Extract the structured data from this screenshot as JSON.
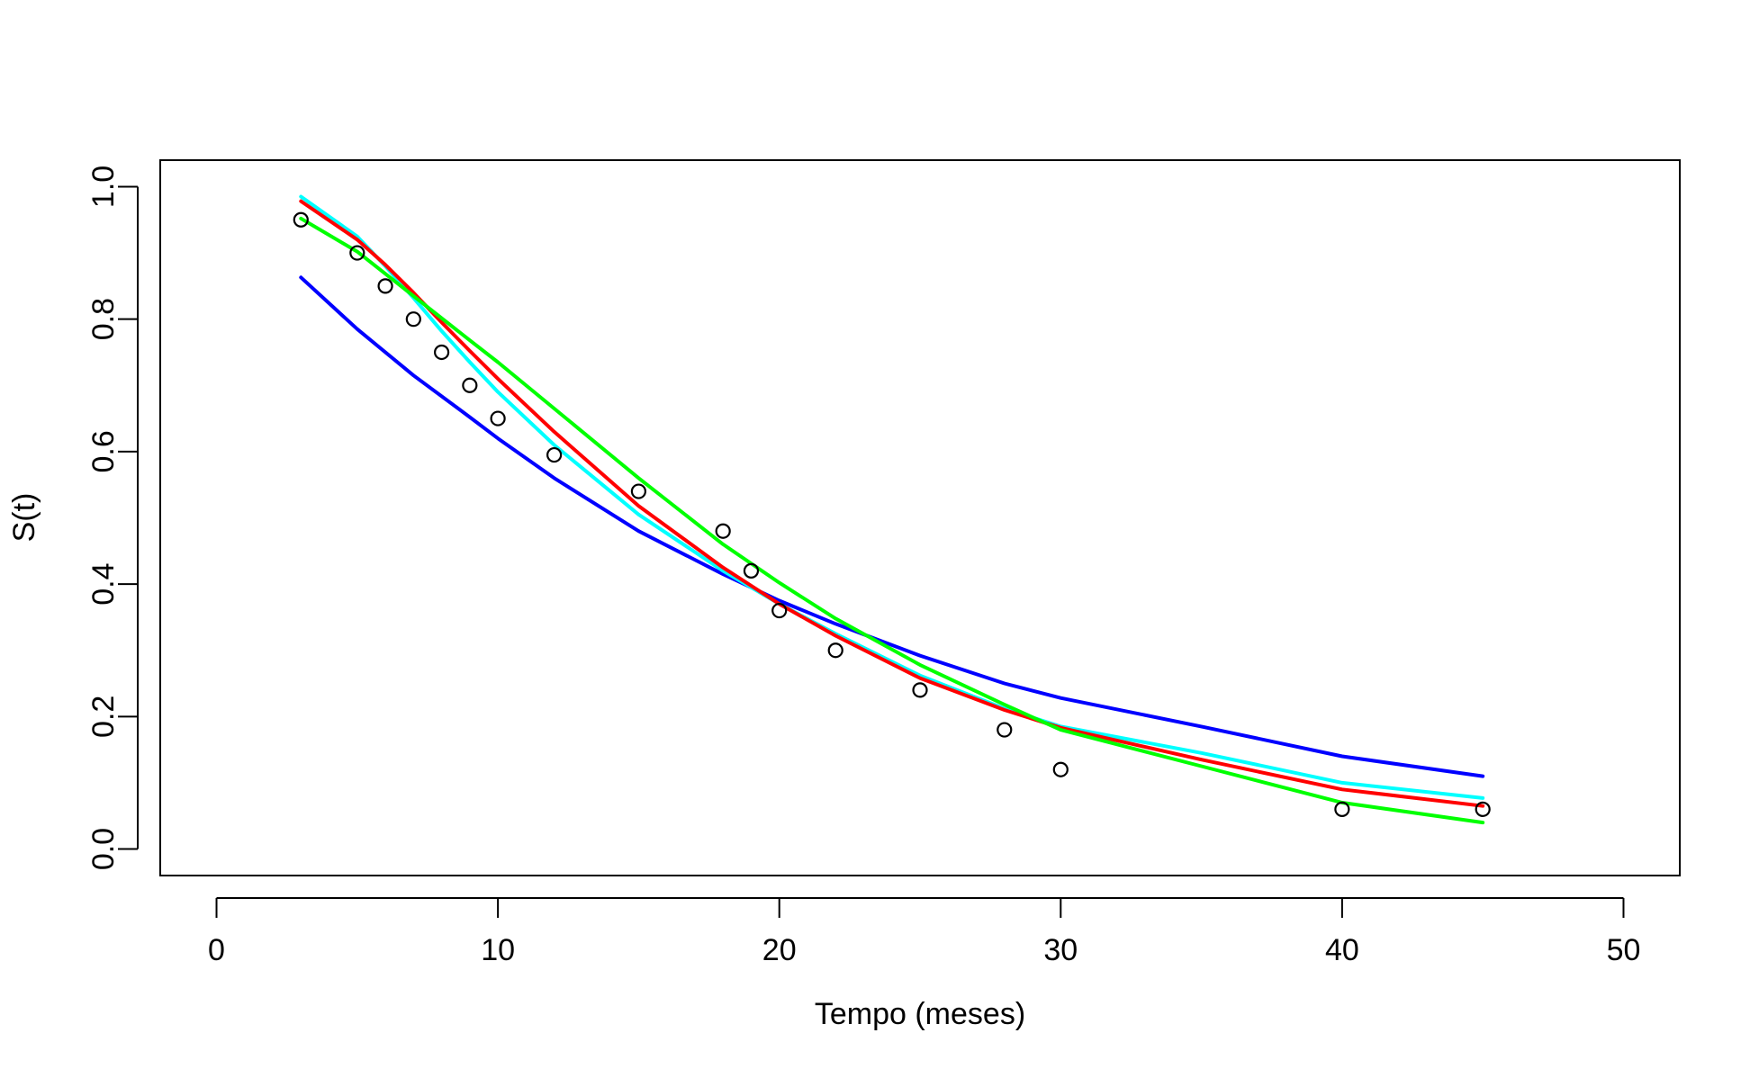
{
  "chart_data": {
    "type": "line",
    "title": "",
    "xlabel": "Tempo (meses)",
    "ylabel": "S(t)",
    "xlim": [
      -2,
      52
    ],
    "ylim": [
      -0.04,
      1.04
    ],
    "xticks": [
      0,
      10,
      20,
      30,
      40,
      50
    ],
    "xtick_labels": [
      "0",
      "10",
      "20",
      "30",
      "40",
      "50"
    ],
    "yticks": [
      0.0,
      0.2,
      0.4,
      0.6,
      0.8,
      1.0
    ],
    "ytick_labels": [
      "0.0",
      "0.2",
      "0.4",
      "0.6",
      "0.8",
      "1.0"
    ],
    "grid": false,
    "legend": "none",
    "points": {
      "marker": "open-circle",
      "color": "#000000",
      "x": [
        3,
        5,
        6,
        7,
        8,
        9,
        10,
        12,
        15,
        18,
        19,
        20,
        22,
        25,
        28,
        30,
        40,
        45
      ],
      "y": [
        0.95,
        0.9,
        0.85,
        0.8,
        0.75,
        0.7,
        0.65,
        0.595,
        0.54,
        0.48,
        0.42,
        0.36,
        0.3,
        0.24,
        0.18,
        0.12,
        0.06,
        0.06
      ]
    },
    "series": [
      {
        "color": "#0000ff",
        "x": [
          3,
          5,
          7,
          9,
          10,
          12,
          15,
          18,
          20,
          22,
          25,
          28,
          30,
          35,
          40,
          45
        ],
        "y": [
          0.863,
          0.785,
          0.715,
          0.652,
          0.62,
          0.56,
          0.48,
          0.415,
          0.375,
          0.34,
          0.292,
          0.25,
          0.228,
          0.185,
          0.14,
          0.11
        ]
      },
      {
        "color": "#00ffff",
        "x": [
          3,
          5,
          6,
          7,
          8,
          9,
          10,
          12,
          15,
          18,
          20,
          22,
          25,
          28,
          30,
          35,
          40,
          45
        ],
        "y": [
          0.985,
          0.925,
          0.88,
          0.832,
          0.782,
          0.735,
          0.69,
          0.61,
          0.505,
          0.42,
          0.37,
          0.325,
          0.262,
          0.212,
          0.185,
          0.145,
          0.1,
          0.077
        ]
      },
      {
        "color": "#ff0000",
        "x": [
          3,
          5,
          6,
          7,
          8,
          9,
          10,
          12,
          15,
          18,
          20,
          22,
          25,
          28,
          30,
          35,
          40,
          45
        ],
        "y": [
          0.978,
          0.92,
          0.882,
          0.84,
          0.795,
          0.752,
          0.71,
          0.63,
          0.518,
          0.425,
          0.37,
          0.322,
          0.258,
          0.21,
          0.183,
          0.135,
          0.09,
          0.065
        ]
      },
      {
        "color": "#00ff00",
        "x": [
          3,
          5,
          7,
          9,
          10,
          12,
          15,
          18,
          20,
          22,
          25,
          28,
          30,
          35,
          40,
          45
        ],
        "y": [
          0.952,
          0.902,
          0.835,
          0.768,
          0.735,
          0.665,
          0.56,
          0.46,
          0.402,
          0.348,
          0.278,
          0.218,
          0.18,
          0.125,
          0.07,
          0.04
        ]
      }
    ]
  }
}
